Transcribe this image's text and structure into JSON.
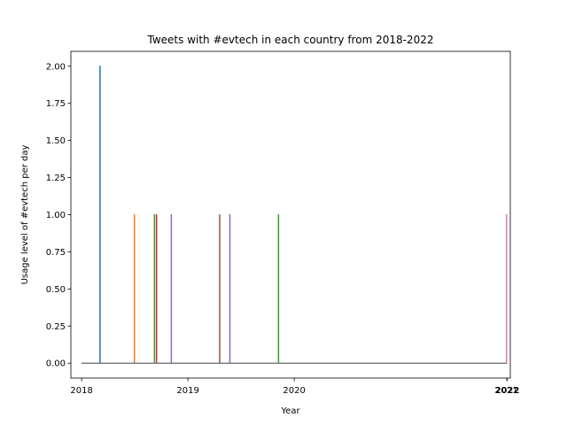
{
  "chart_data": {
    "type": "line",
    "title": "Tweets with #evtech in each country from 2018-2022",
    "xlabel": "Year",
    "ylabel": "Usage level of #evtech per day",
    "xlim": [
      "2017-11-25",
      "2022-01-12"
    ],
    "ylim": [
      -0.1,
      2.1
    ],
    "grid": false,
    "legend": "none",
    "x_ticks": [
      {
        "value": "2018-01-01",
        "label": "2018",
        "bold": false
      },
      {
        "value": "2019-01-01",
        "label": "2019",
        "bold": false
      },
      {
        "value": "2020-01-01",
        "label": "2020",
        "bold": false
      },
      {
        "value": "2021-12-31",
        "label": "2021",
        "bold": false
      },
      {
        "value": "2022-01-01",
        "label": "2022",
        "bold": true
      }
    ],
    "y_ticks": [
      0.0,
      0.25,
      0.5,
      0.75,
      1.0,
      1.25,
      1.5,
      1.75,
      2.0
    ],
    "y_tick_labels": [
      "0.00",
      "0.25",
      "0.50",
      "0.75",
      "1.00",
      "1.25",
      "1.50",
      "1.75",
      "2.00"
    ],
    "series": [
      {
        "color": "#1f77b4",
        "start": "2018-01-01",
        "end": "2021-12-31",
        "spikes": [
          {
            "date": "2018-03-05",
            "value": 2
          }
        ]
      },
      {
        "color": "#ff7f0e",
        "start": "2018-01-01",
        "end": "2021-12-31",
        "spikes": [
          {
            "date": "2018-07-01",
            "value": 1
          }
        ]
      },
      {
        "color": "#2ca02c",
        "start": "2018-01-01",
        "end": "2021-12-31",
        "spikes": [
          {
            "date": "2018-09-08",
            "value": 1
          },
          {
            "date": "2019-11-08",
            "value": 1
          }
        ]
      },
      {
        "color": "#d62728",
        "start": "2018-01-01",
        "end": "2021-12-31",
        "spikes": [
          {
            "date": "2018-09-15",
            "value": 1
          }
        ]
      },
      {
        "color": "#9467bd",
        "start": "2018-01-01",
        "end": "2021-12-31",
        "spikes": [
          {
            "date": "2018-11-05",
            "value": 1
          },
          {
            "date": "2019-05-25",
            "value": 1
          }
        ]
      },
      {
        "color": "#8c564b",
        "start": "2018-01-01",
        "end": "2021-12-31",
        "spikes": [
          {
            "date": "2019-04-20",
            "value": 1
          }
        ]
      },
      {
        "color": "#e377c2",
        "start": "2018-01-01",
        "end": "2021-12-31",
        "spikes": [
          {
            "date": "2021-12-30",
            "value": 1
          }
        ]
      },
      {
        "color": "#7f7f7f",
        "start": "2018-01-01",
        "end": "2021-12-31",
        "spikes": []
      }
    ]
  }
}
